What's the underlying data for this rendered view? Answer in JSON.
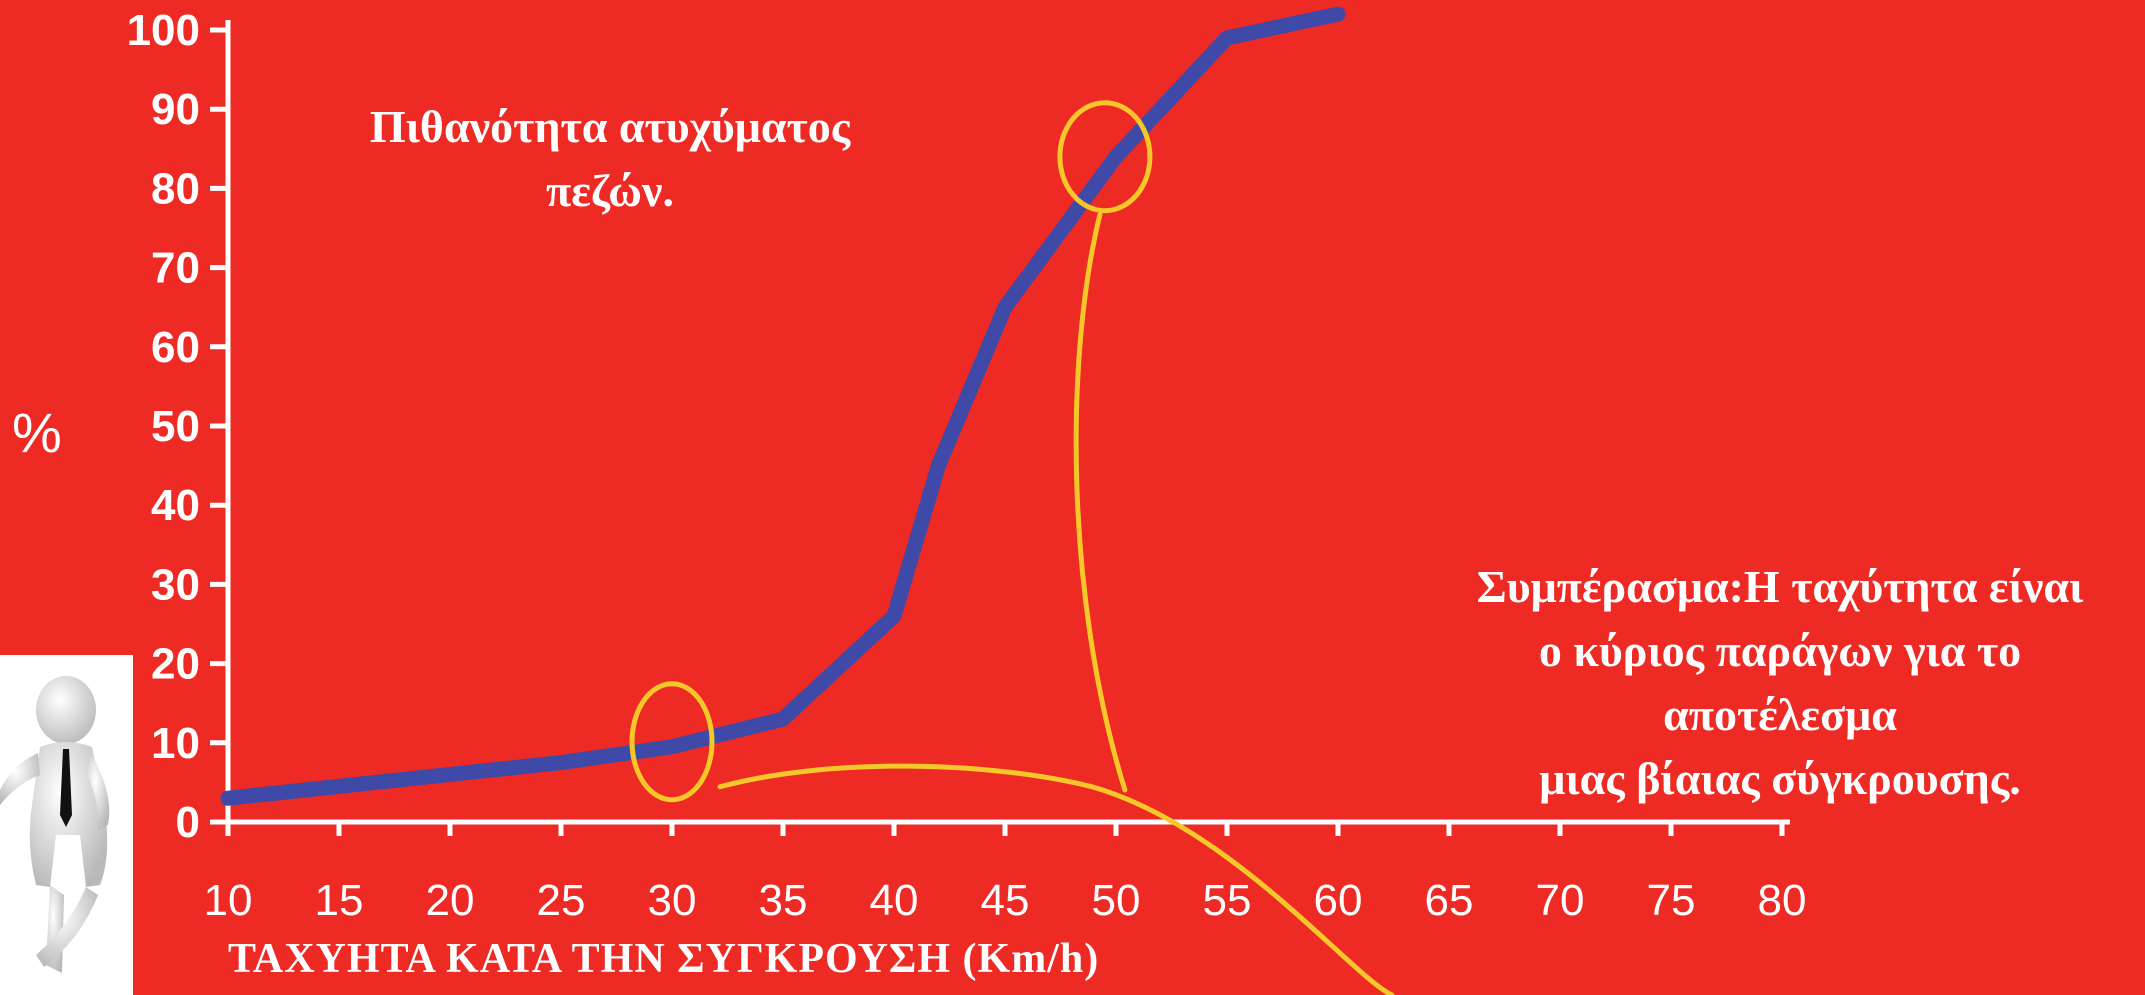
{
  "chart_data": {
    "type": "line",
    "title": "Πιθανότητα ατυχύματος πεζών.",
    "title_lines": [
      "Πιθανότητα ατυχύματος",
      "πεζών."
    ],
    "xlabel": "ΤΑΧΥΗΤΑ ΚΑΤΑ ΤΗΝ ΣΥΓΚΡΟΥΣΗ (Km/h)",
    "ylabel": "%",
    "xlim": [
      10,
      80
    ],
    "ylim": [
      0,
      100
    ],
    "x_ticks": [
      10,
      15,
      20,
      25,
      30,
      35,
      40,
      45,
      50,
      55,
      60,
      65,
      70,
      75,
      80
    ],
    "y_ticks": [
      0,
      10,
      20,
      30,
      40,
      50,
      60,
      70,
      80,
      90,
      100
    ],
    "grid": false,
    "series": [
      {
        "x": [
          10,
          15,
          20,
          25,
          30,
          35,
          40,
          42,
          45,
          50,
          55,
          60
        ],
        "values": [
          3,
          4.5,
          6,
          7.5,
          9.5,
          13,
          26,
          45,
          65,
          84,
          99,
          102
        ]
      }
    ],
    "annotations": {
      "conclusion_lines": [
        "Συμπέρασμα:Η ταχύτητα είναι",
        "ο κύριος παράγων για το αποτέλεσμα",
        "μιας βίαιας σύγκρουσης."
      ],
      "highlight_points": [
        {
          "x": 30,
          "y": 9.5
        },
        {
          "x": 49.5,
          "y": 84
        }
      ],
      "color": "#f5c82a"
    },
    "colors": {
      "background": "#ee2a24",
      "series": "#3e49a8",
      "axes": "#ffffff"
    }
  }
}
